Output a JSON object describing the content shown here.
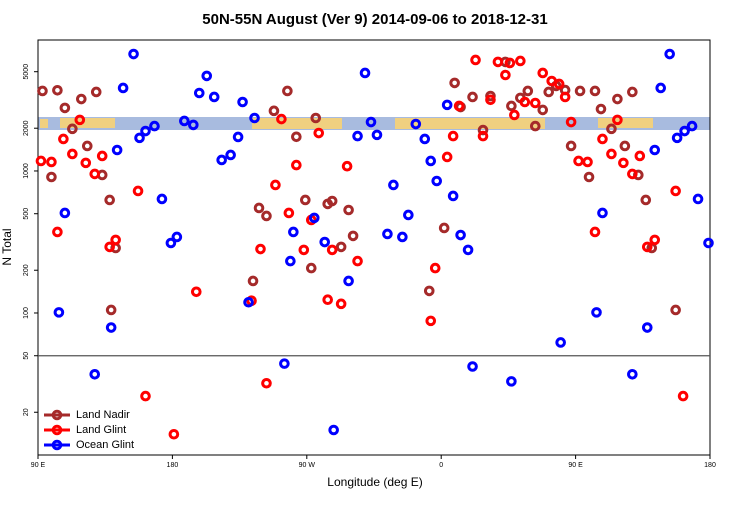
{
  "chart_data": {
    "type": "scatter",
    "title": "50N-55N August (Ver 9)   2014-09-06 to 2018-12-31",
    "x_label": "Longitude (deg E)",
    "y_label": "N Total",
    "log_y": true,
    "legend": "bottomleft",
    "hline": 50,
    "xlim": [
      90,
      540
    ],
    "ylim": [
      10,
      8360
    ],
    "xticks": [
      {
        "value": 90,
        "label": "90 E"
      },
      {
        "value": 180,
        "label": "180"
      },
      {
        "value": 270,
        "label": "90 W"
      },
      {
        "value": 360,
        "label": "0"
      },
      {
        "value": 450,
        "label": "90 E"
      },
      {
        "value": 540,
        "label": "180"
      }
    ],
    "yticks": [
      20,
      50,
      100,
      200,
      500,
      1000,
      2000,
      5000
    ],
    "series": [
      {
        "name": "Land Nadir",
        "color": "#a52a2a",
        "x": [
          93,
          103,
          108,
          113,
          119,
          123,
          129,
          133,
          138,
          142,
          99,
          139,
          238,
          243,
          234,
          248,
          257,
          263,
          269,
          273,
          276,
          284,
          287,
          293,
          298,
          301,
          352,
          362,
          369,
          373,
          381,
          388,
          393,
          403,
          407,
          413,
          418,
          423,
          428,
          432,
          437,
          443,
          447,
          453,
          459,
          463,
          467,
          474,
          478,
          483,
          488,
          492,
          497,
          501,
          517
        ],
        "values": [
          3660,
          3700,
          2780,
          1980,
          3210,
          1500,
          3600,
          937,
          625,
          287,
          907,
          105,
          549,
          482,
          168,
          2650,
          3660,
          1740,
          625,
          207,
          2360,
          586,
          614,
          292,
          531,
          349,
          143,
          397,
          4170,
          2820,
          3320,
          1940,
          3370,
          5860,
          2870,
          3270,
          3660,
          2070,
          2690,
          3600,
          3970,
          3710,
          1500,
          3660,
          907,
          3660,
          2730,
          1980,
          3210,
          1500,
          3600,
          937,
          625,
          287,
          105
        ]
      },
      {
        "name": "Land Glint",
        "color": "#ff0000",
        "x": [
          92,
          99,
          103,
          107,
          113,
          118,
          122,
          128,
          133,
          138,
          142,
          157,
          162,
          181,
          196,
          233,
          239,
          243,
          249,
          253,
          258,
          263,
          268,
          273,
          278,
          284,
          287,
          293,
          297,
          304,
          353,
          356,
          364,
          368,
          372,
          383,
          388,
          393,
          398,
          403,
          406,
          409,
          413,
          416,
          423,
          428,
          434,
          439,
          443,
          447,
          452,
          458,
          463,
          468,
          474,
          478,
          482,
          488,
          493,
          498,
          503,
          517,
          522
        ],
        "values": [
          1176,
          1157,
          372,
          1680,
          1317,
          2290,
          1140,
          953,
          1275,
          292,
          327,
          723,
          26,
          14,
          141,
          122,
          282,
          32,
          797,
          2320,
          506,
          1100,
          278,
          452,
          1850,
          124,
          278,
          116,
          1080,
          232,
          88,
          207,
          1255,
          1760,
          2870,
          6050,
          1760,
          3170,
          5860,
          4740,
          5760,
          2480,
          5950,
          3060,
          3010,
          4900,
          4300,
          4100,
          3320,
          2210,
          1176,
          1157,
          372,
          1680,
          1317,
          2290,
          1140,
          953,
          1275,
          292,
          327,
          723,
          26
        ]
      },
      {
        "name": "Ocean Glint",
        "color": "#0000ff",
        "x": [
          104,
          108,
          128,
          139,
          143,
          147,
          154,
          158,
          162,
          168,
          173,
          179,
          183,
          188,
          194,
          198,
          203,
          208,
          213,
          219,
          224,
          227,
          231,
          235,
          255,
          259,
          261,
          275,
          282,
          288,
          298,
          304,
          309,
          313,
          317,
          324,
          328,
          334,
          338,
          343,
          349,
          353,
          357,
          364,
          368,
          373,
          378,
          381,
          407,
          440,
          464,
          468,
          488,
          498,
          503,
          507,
          513,
          518,
          523,
          528,
          532,
          539
        ],
        "values": [
          101,
          506,
          37,
          79,
          1405,
          3840,
          6660,
          1710,
          1910,
          2070,
          635,
          311,
          343,
          2250,
          2110,
          3540,
          4670,
          3320,
          1195,
          1296,
          1735,
          3060,
          119,
          2360,
          44,
          232,
          372,
          467,
          316,
          15,
          168,
          1760,
          4900,
          2210,
          1795,
          360,
          797,
          343,
          490,
          2140,
          1680,
          1176,
          850,
          2920,
          667,
          354,
          278,
          42,
          33,
          62,
          101,
          506,
          37,
          79,
          1405,
          3840,
          6660,
          1710,
          1910,
          2070,
          635,
          311
        ]
      }
    ]
  }
}
